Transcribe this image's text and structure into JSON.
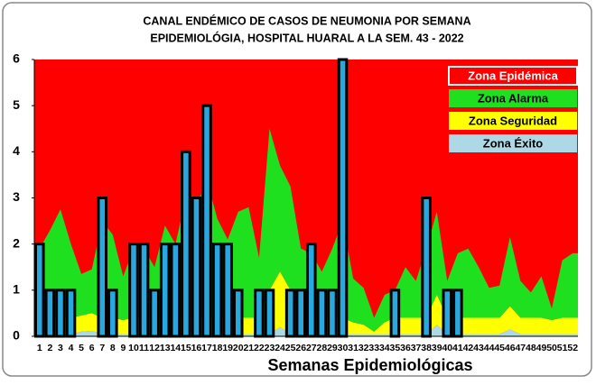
{
  "chart_data": {
    "type": "bar",
    "title": "CANAL ENDÉMICO DE CASOS DE NEUMONIA POR SEMANA",
    "subtitle": "EPIDEMIOLÓGIA, HOSPITAL HUARAL A LA SEM. 43 - 2022",
    "x_label": "Semanas Epidemiológicas",
    "categories": [
      "1",
      "2",
      "3",
      "4",
      "5",
      "6",
      "7",
      "8",
      "9",
      "10",
      "11",
      "12",
      "13",
      "14",
      "15",
      "16",
      "17",
      "18",
      "19",
      "20",
      "21",
      "22",
      "23",
      "24",
      "25",
      "26",
      "27",
      "28",
      "29",
      "30",
      "31",
      "32",
      "33",
      "34",
      "35",
      "36",
      "37",
      "38",
      "39",
      "40",
      "41",
      "42",
      "43",
      "44",
      "45",
      "46",
      "47",
      "48",
      "49",
      "50",
      "51",
      "52"
    ],
    "ylim": [
      0,
      6
    ],
    "yticks": [
      0,
      1,
      2,
      3,
      4,
      5,
      6
    ],
    "bar_color": "#29a8e0",
    "values": [
      2,
      1,
      1,
      1,
      0,
      0,
      3,
      1,
      0,
      2,
      2,
      1,
      2,
      2,
      4,
      3,
      5,
      2,
      2,
      1,
      0,
      1,
      1,
      0,
      1,
      1,
      2,
      1,
      1,
      6,
      0,
      0,
      0,
      0,
      1,
      0,
      0,
      3,
      0,
      1,
      1,
      0,
      0,
      null,
      null,
      null,
      null,
      null,
      null,
      null,
      null,
      null
    ],
    "zones": [
      {
        "name": "Zona Éxito",
        "color": "#add8e6",
        "values": [
          0.05,
          0.05,
          0.05,
          0.05,
          0.1,
          0.12,
          0.05,
          0.05,
          0.05,
          0.05,
          0.05,
          0.05,
          0.05,
          0.05,
          0.05,
          0.05,
          0.05,
          0.05,
          0.05,
          0.05,
          0.05,
          0.05,
          0.05,
          0.2,
          0.05,
          0.05,
          0.05,
          0.05,
          0.05,
          0.05,
          0.05,
          0.05,
          0.05,
          0.05,
          0.05,
          0.05,
          0.05,
          0.05,
          0.25,
          0.05,
          0.05,
          0.05,
          0.05,
          0.05,
          0.05,
          0.15,
          0.05,
          0.05,
          0.05,
          0.05,
          0.05,
          0.05
        ]
      },
      {
        "name": "Zona Seguridad",
        "color": "#ffff00",
        "values": [
          0.35,
          0.35,
          0.35,
          0.35,
          0.35,
          0.38,
          0.35,
          0.35,
          0.3,
          0.35,
          0.35,
          0.35,
          0.35,
          0.35,
          0.35,
          0.35,
          0.35,
          0.35,
          0.35,
          0.35,
          0.35,
          0.35,
          0.95,
          1.2,
          0.95,
          0.35,
          0.35,
          0.35,
          0.35,
          0.35,
          0.25,
          0.2,
          0.05,
          0.25,
          0.35,
          0.35,
          0.35,
          0.35,
          0.65,
          0.35,
          0.35,
          0.35,
          0.35,
          0.35,
          0.35,
          0.5,
          0.35,
          0.35,
          0.35,
          0.3,
          0.35,
          0.35
        ]
      },
      {
        "name": "Zona Alarma",
        "color": "#1ee01e",
        "values": [
          1.5,
          1.9,
          2.35,
          1.6,
          0.9,
          0.95,
          2.1,
          1.8,
          0.95,
          1.5,
          1.5,
          1.1,
          2.0,
          1.6,
          2.6,
          2.4,
          3.0,
          2.15,
          1.7,
          2.3,
          2.4,
          1.3,
          3.5,
          2.3,
          2.25,
          1.5,
          1.4,
          1.0,
          1.5,
          2.1,
          0.95,
          0.8,
          0.3,
          0.6,
          0.6,
          1.1,
          0.8,
          1.5,
          1.8,
          0.8,
          1.4,
          1.5,
          1.1,
          0.65,
          0.7,
          1.5,
          0.8,
          0.55,
          0.9,
          0.25,
          1.25,
          1.4
        ]
      }
    ],
    "epidemic_zone": {
      "name": "Zona Epidémica",
      "color": "#ff0000"
    }
  }
}
